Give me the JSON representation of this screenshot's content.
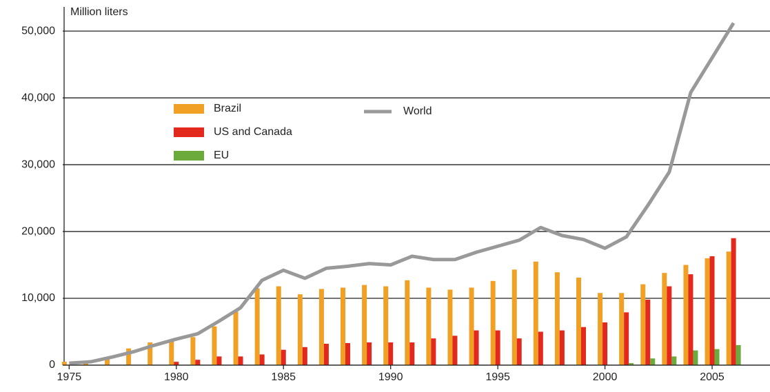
{
  "chart_data": {
    "type": "bar-line",
    "y_label": "Million liters",
    "x": [
      1975,
      1976,
      1977,
      1978,
      1979,
      1980,
      1981,
      1982,
      1983,
      1984,
      1985,
      1986,
      1987,
      1988,
      1989,
      1990,
      1991,
      1992,
      1993,
      1994,
      1995,
      1996,
      1997,
      1998,
      1999,
      2000,
      2001,
      2002,
      2003,
      2004,
      2005,
      2006
    ],
    "series": [
      {
        "name": "Brazil",
        "color": "#f0a024",
        "kind": "bar",
        "values": [
          500,
          600,
          1000,
          2500,
          3400,
          3700,
          4200,
          5800,
          8000,
          11500,
          11800,
          10600,
          11400,
          11600,
          12000,
          11800,
          12700,
          11600,
          11300,
          11600,
          12600,
          14300,
          15500,
          13900,
          13100,
          10800,
          10800,
          12100,
          13800,
          15000,
          16000,
          17000
        ]
      },
      {
        "name": "US and Canada",
        "color": "#e3281e",
        "kind": "bar",
        "values": [
          0,
          0,
          0,
          0,
          0,
          500,
          800,
          1300,
          1300,
          1600,
          2300,
          2700,
          3200,
          3300,
          3400,
          3400,
          3400,
          4000,
          4400,
          5200,
          5200,
          4000,
          5000,
          5200,
          5700,
          6400,
          7900,
          9800,
          11800,
          13600,
          16300,
          19000
        ]
      },
      {
        "name": "EU",
        "color": "#6aab3c",
        "kind": "bar",
        "values": [
          0,
          0,
          0,
          0,
          0,
          0,
          0,
          0,
          0,
          0,
          0,
          0,
          0,
          0,
          0,
          0,
          0,
          0,
          0,
          0,
          0,
          0,
          0,
          0,
          0,
          0,
          300,
          1000,
          1300,
          2200,
          2400,
          3000
        ]
      },
      {
        "name": "World",
        "color": "#999999",
        "kind": "line",
        "values": [
          300,
          500,
          1200,
          2000,
          3000,
          3900,
          4700,
          6600,
          8600,
          12700,
          14200,
          13000,
          14500,
          14800,
          15200,
          15000,
          16300,
          15800,
          15800,
          16900,
          17800,
          18700,
          20600,
          19400,
          18800,
          17500,
          19200,
          23900,
          28900,
          40800,
          46000,
          51200
        ]
      }
    ],
    "xlim": [
      1974.7,
      2006.8
    ],
    "xticks": [
      1975,
      1980,
      1985,
      1990,
      1995,
      2000,
      2005
    ],
    "ylim": [
      0,
      53000
    ],
    "yticks": [
      0,
      {
        "value": 10000,
        "label": "10,000"
      },
      {
        "value": 20000,
        "label": "20,000"
      },
      {
        "value": 30000,
        "label": "30,000"
      },
      {
        "value": 40000,
        "label": "40,000"
      },
      {
        "value": 50000,
        "label": "50,000"
      }
    ],
    "grid": true
  }
}
